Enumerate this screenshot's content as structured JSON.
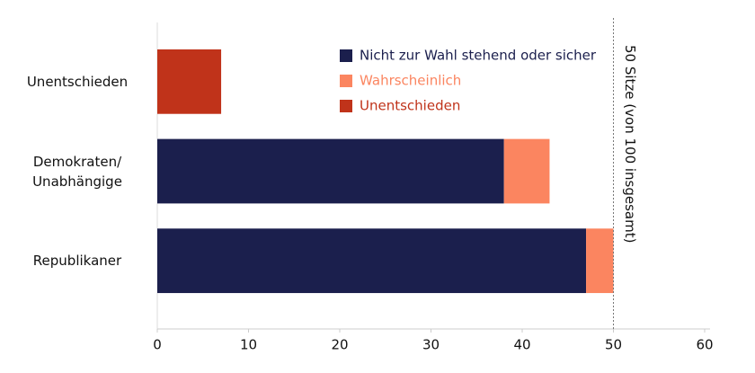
{
  "chart_data": {
    "type": "stacked-bar-horizontal",
    "categories": [
      "Unentschieden",
      "Demokraten/\nUnabhängige",
      "Republikaner"
    ],
    "series": [
      {
        "name": "Nicht zur Wahl stehend oder sicher",
        "color": "#1b1f4d",
        "values": [
          0,
          38,
          47
        ]
      },
      {
        "name": "Wahrscheinlich",
        "color": "#fb8560",
        "values": [
          0,
          5,
          3
        ]
      },
      {
        "name": "Unentschieden",
        "color": "#c0331a",
        "values": [
          7,
          0,
          0
        ]
      }
    ],
    "xlim": [
      0,
      60
    ],
    "xticks": [
      0,
      10,
      20,
      30,
      40,
      50,
      60
    ],
    "reference_line": {
      "value": 50,
      "label": "50 Sitze (von 100 insgesamt)"
    },
    "legend": "top-right"
  }
}
